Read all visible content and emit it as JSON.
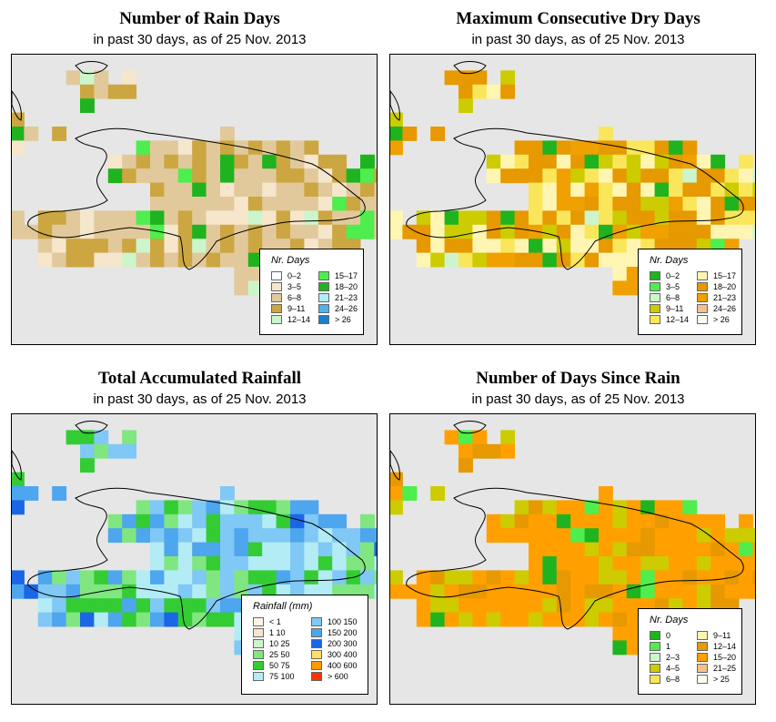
{
  "panels": [
    {
      "id": "rain-days",
      "title": "Number of Rain Days",
      "subtitle": "in past 30 days, as of  25 Nov. 2013",
      "legend_title": "Nr. Days",
      "legend": [
        {
          "label": "0–2",
          "color": "#ffffff"
        },
        {
          "label": "3–5",
          "color": "#f5e6cc"
        },
        {
          "label": "6–8",
          "color": "#e2c99b"
        },
        {
          "label": "9–11",
          "color": "#cca640"
        },
        {
          "label": "12–14",
          "color": "#ccf5cc"
        },
        {
          "label": "15–17",
          "color": "#4dee4d"
        },
        {
          "label": "18–20",
          "color": "#1fb31f"
        },
        {
          "label": "21–23",
          "color": "#b3ecf5"
        },
        {
          "label": "24–26",
          "color": "#4db3ee"
        },
        {
          "label": "> 26",
          "color": "#1a80cc"
        }
      ],
      "palette": [
        "#e2c99b",
        "#cca640",
        "#e2c99b",
        "#f5e6cc",
        "#cca640",
        "#e2c99b"
      ],
      "accents": [
        "#4dee4d",
        "#ccf5cc",
        "#1fb31f"
      ]
    },
    {
      "id": "dry-days",
      "title": "Maximum Consecutive Dry Days",
      "subtitle": "in past 30 days, as of  25 Nov. 2013",
      "legend_title": "Nr. Days",
      "legend": [
        {
          "label": "0–2",
          "color": "#1fb31f"
        },
        {
          "label": "3–5",
          "color": "#4dee4d"
        },
        {
          "label": "6–8",
          "color": "#ccf5cc"
        },
        {
          "label": "9–11",
          "color": "#cccc00"
        },
        {
          "label": "12–14",
          "color": "#fae65a"
        },
        {
          "label": "15–17",
          "color": "#fff5b3"
        },
        {
          "label": "18–20",
          "color": "#e69900"
        },
        {
          "label": "21–23",
          "color": "#f0a000"
        },
        {
          "label": "24–26",
          "color": "#f5c08a"
        },
        {
          "label": "> 26",
          "color": "#fffff0"
        }
      ],
      "palette": [
        "#e69900",
        "#cccc00",
        "#fae65a",
        "#fff5b3",
        "#e69900",
        "#f0a000"
      ],
      "accents": [
        "#4dee4d",
        "#1fb31f",
        "#ccf5cc"
      ]
    },
    {
      "id": "rainfall",
      "title": "Total Accumulated Rainfall",
      "subtitle": "in past 30 days, as of  25 Nov. 2013",
      "legend_title": "Rainfall (mm)",
      "legend": [
        {
          "label": "< 1",
          "color": "#fff5e6"
        },
        {
          "label": "1  10",
          "color": "#f5e6cc"
        },
        {
          "label": "10  25",
          "color": "#ccf5cc"
        },
        {
          "label": "25  50",
          "color": "#80e680"
        },
        {
          "label": "50  75",
          "color": "#33cc33"
        },
        {
          "label": "75  100",
          "color": "#b3ecf5"
        },
        {
          "label": "100  150",
          "color": "#80c8f5"
        },
        {
          "label": "150  200",
          "color": "#4da6ee"
        },
        {
          "label": "200  300",
          "color": "#1a66e6"
        },
        {
          "label": "300  400",
          "color": "#ffe066"
        },
        {
          "label": "400  600",
          "color": "#ff9900"
        },
        {
          "label": "> 600",
          "color": "#ff3300"
        }
      ],
      "palette": [
        "#80c8f5",
        "#4da6ee",
        "#b3ecf5",
        "#80c8f5",
        "#33cc33",
        "#80e680"
      ],
      "accents": [
        "#1a66e6",
        "#33cc33",
        "#b3ecf5"
      ]
    },
    {
      "id": "since-rain",
      "title": "Number of Days Since Rain",
      "subtitle": "in past 30 days, as of  25 Nov. 2013",
      "legend_title": "Nr. Days",
      "legend": [
        {
          "label": "0",
          "color": "#1fb31f"
        },
        {
          "label": "1",
          "color": "#4dee4d"
        },
        {
          "label": "2–3",
          "color": "#ccf5cc"
        },
        {
          "label": "4–5",
          "color": "#cccc00"
        },
        {
          "label": "6–8",
          "color": "#fae65a"
        },
        {
          "label": "9–11",
          "color": "#fff5b3"
        },
        {
          "label": "12–14",
          "color": "#e69900"
        },
        {
          "label": "15–20",
          "color": "#ffa000"
        },
        {
          "label": "21–25",
          "color": "#f5c08a"
        },
        {
          "label": "> 25",
          "color": "#fffff0"
        }
      ],
      "palette": [
        "#ffa000",
        "#ffa000",
        "#e69900",
        "#ffa000",
        "#cccc00",
        "#ffa000"
      ],
      "accents": [
        "#1fb31f",
        "#4dee4d",
        "#cccc00"
      ]
    }
  ]
}
